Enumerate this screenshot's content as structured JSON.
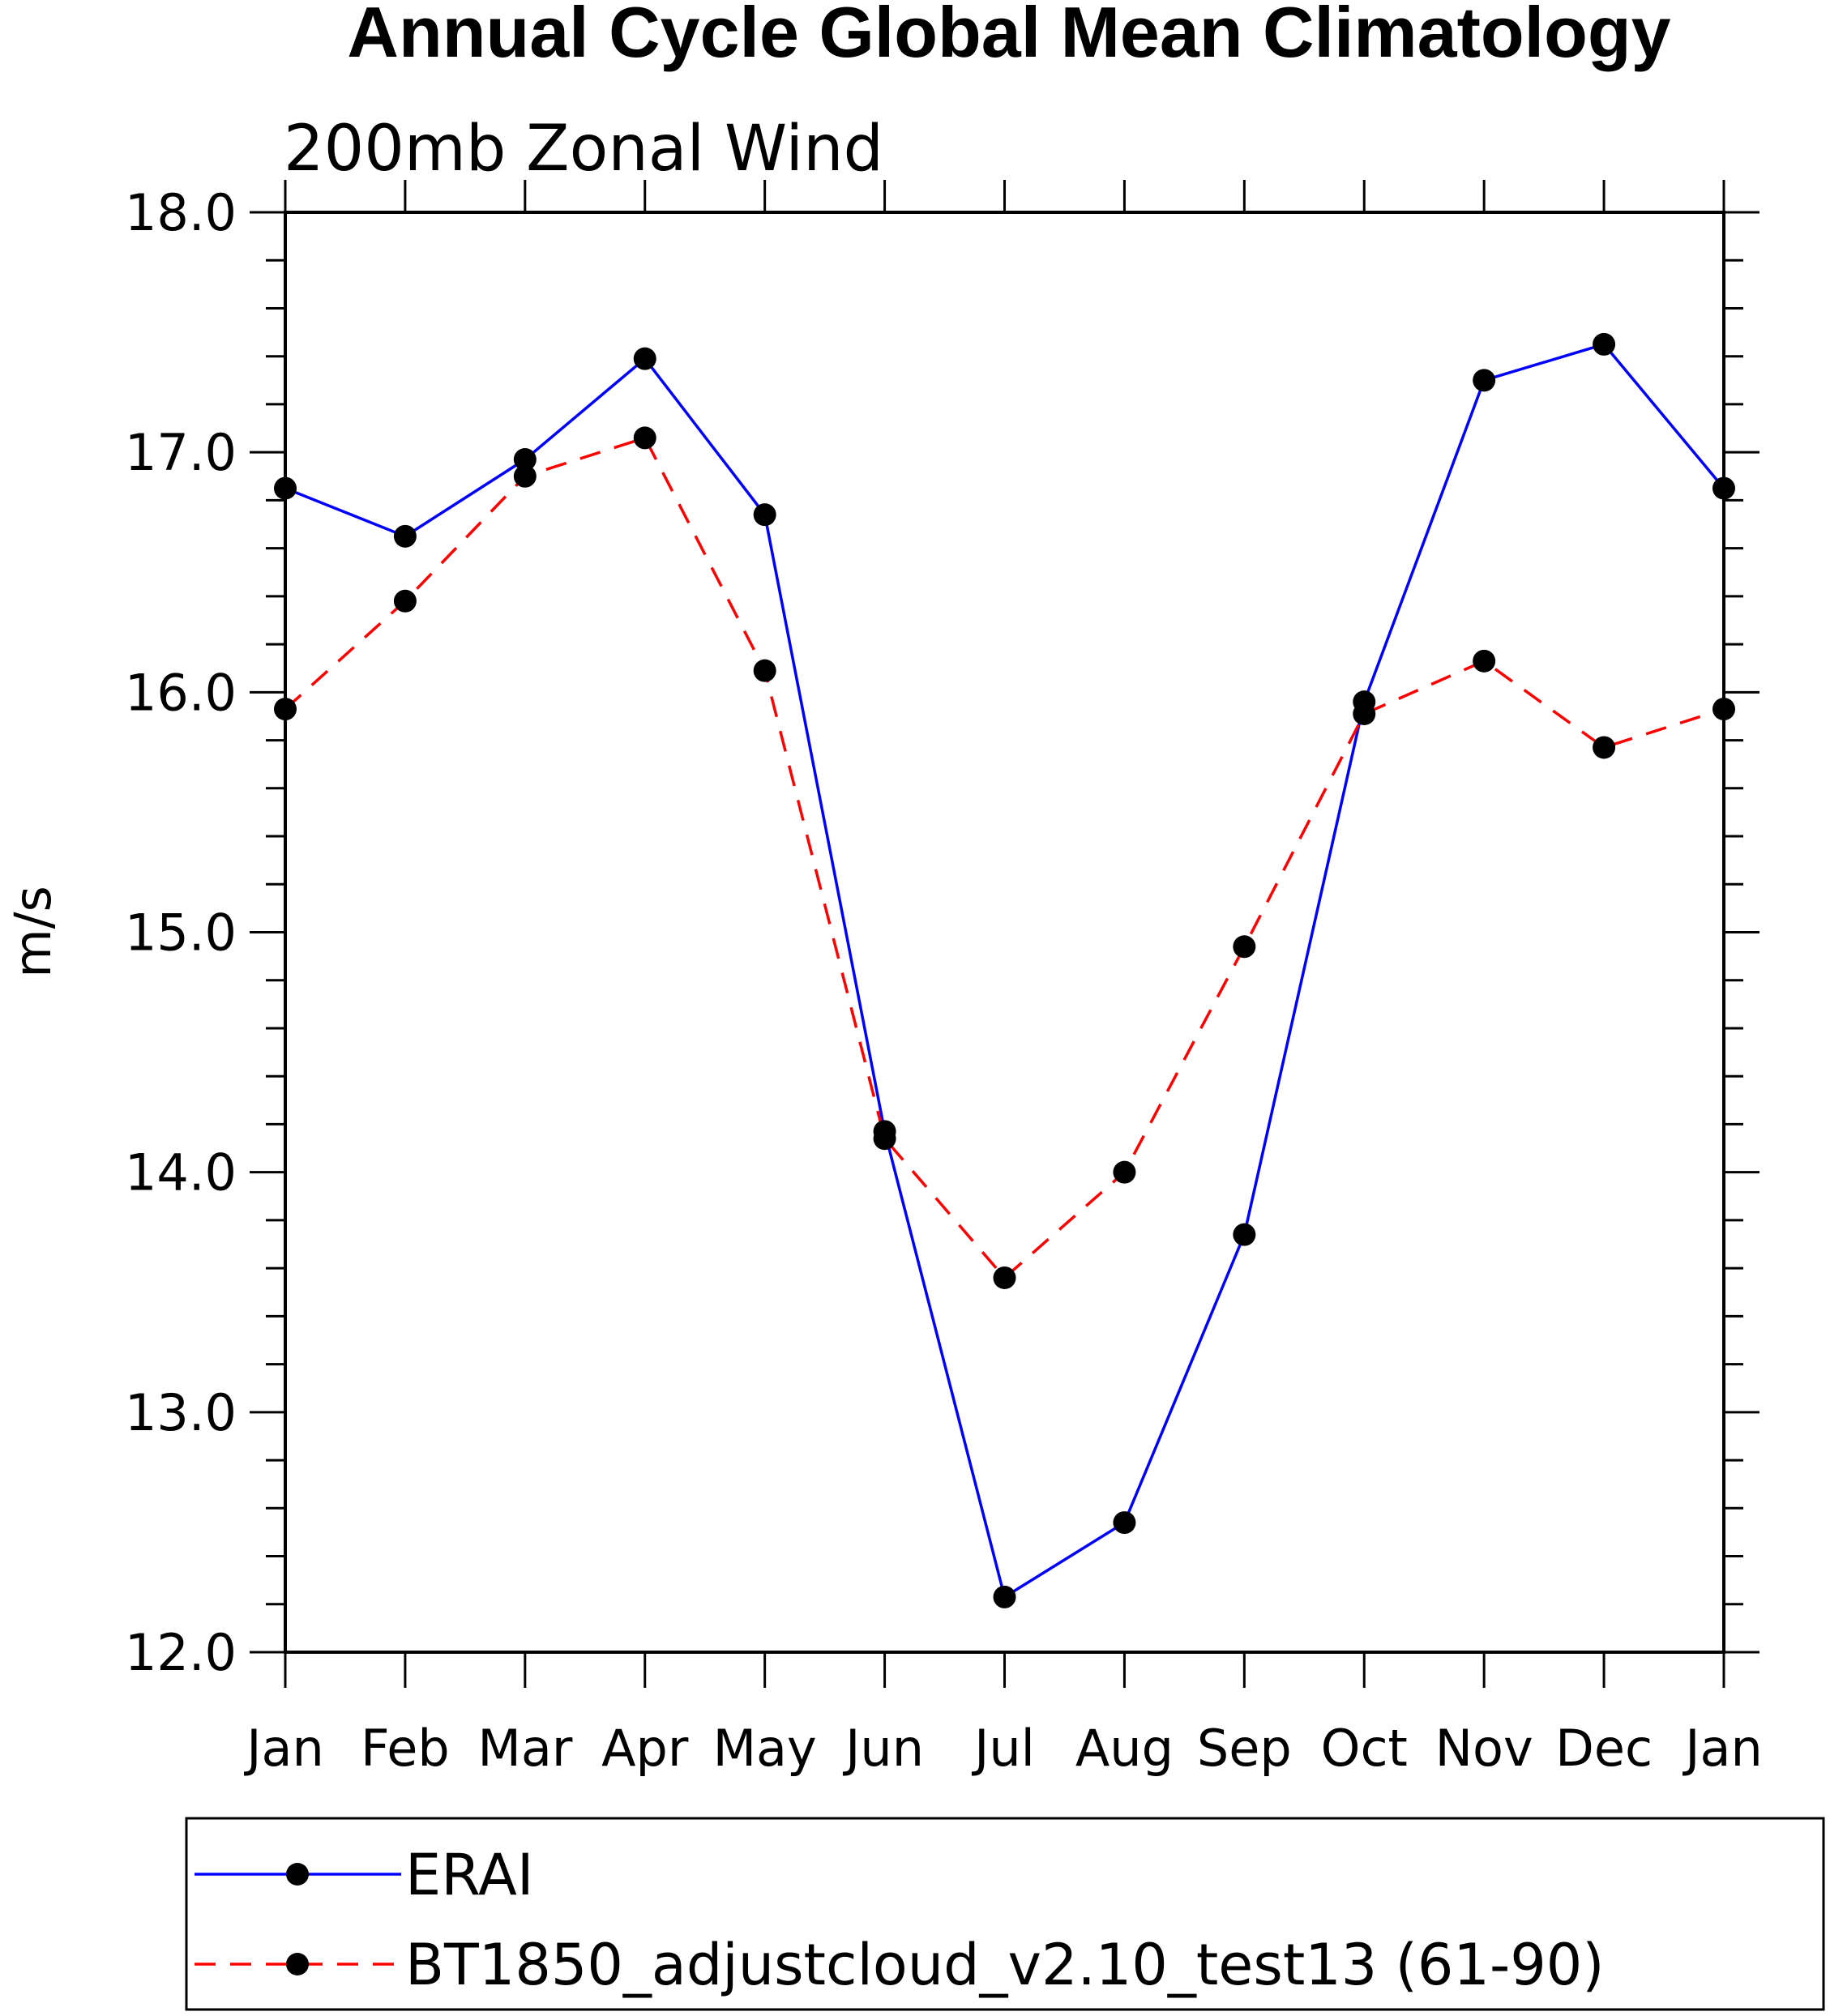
{
  "chart_data": {
    "type": "line",
    "title": "Annual Cycle Global Mean Climatology",
    "subtitle": "200mb Zonal Wind",
    "xlabel": "",
    "ylabel": "m/s",
    "ylim": [
      12.0,
      18.0
    ],
    "yticks": [
      "12.0",
      "13.0",
      "14.0",
      "15.0",
      "16.0",
      "17.0",
      "18.0"
    ],
    "categories": [
      "Jan",
      "Feb",
      "Mar",
      "Apr",
      "May",
      "Jun",
      "Jul",
      "Aug",
      "Sep",
      "Oct",
      "Nov",
      "Dec",
      "Jan"
    ],
    "series": [
      {
        "name": "ERAI",
        "color": "#0000ff",
        "dash": "solid",
        "values": [
          16.85,
          16.65,
          16.97,
          17.39,
          16.74,
          14.17,
          12.23,
          12.54,
          13.74,
          15.96,
          17.3,
          17.45,
          16.85
        ]
      },
      {
        "name": "BT1850_adjustcloud_v2.10_test13 (61-90)",
        "color": "#ff0000",
        "dash": "dashed",
        "values": [
          15.93,
          16.38,
          16.9,
          17.06,
          16.09,
          14.14,
          13.56,
          14.0,
          14.94,
          15.91,
          16.13,
          15.77,
          15.93
        ]
      }
    ],
    "legend_position": "bottom"
  }
}
